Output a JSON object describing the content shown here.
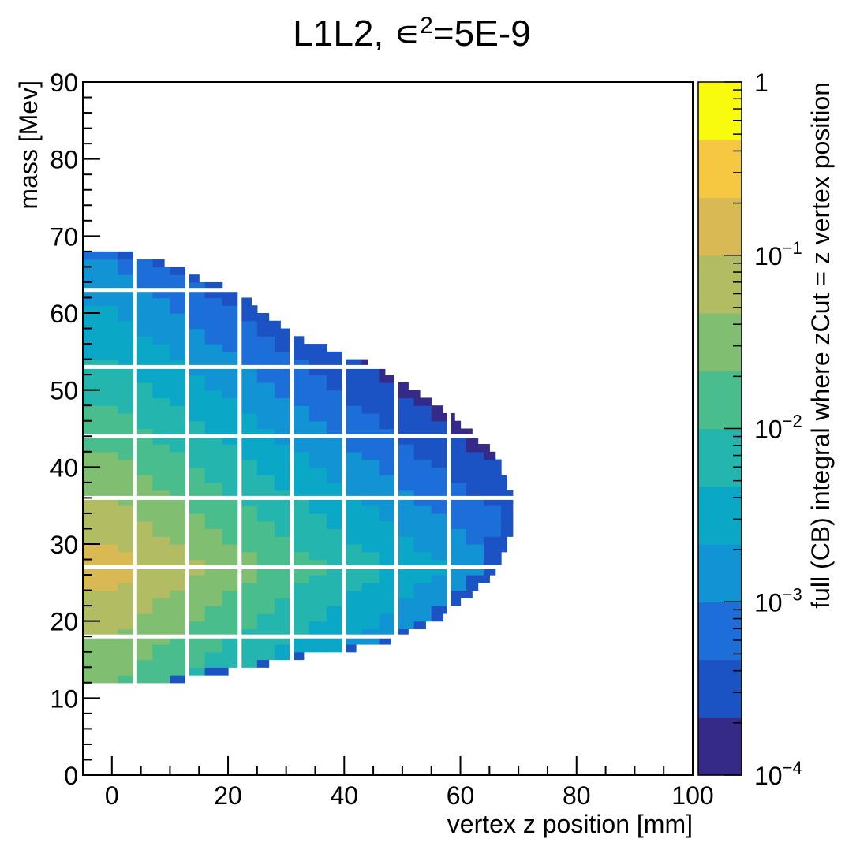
{
  "chart_data": {
    "type": "heatmap",
    "title": "L1L2, ∊²=5E-9",
    "title_parts": {
      "prefix": "L1L2, ",
      "epsilon": "∊",
      "power": "2",
      "suffix": "=5E-9"
    },
    "xlabel": "vertex z position [mm]",
    "ylabel": "mass [Mev]",
    "zlabel": "full (CB) integral where zCut = z vertex position",
    "xlim": [
      -5,
      100
    ],
    "ylim": [
      0,
      90
    ],
    "x_ticks": [
      "0",
      "20",
      "40",
      "60",
      "80",
      "100"
    ],
    "y_ticks": [
      "0",
      "10",
      "20",
      "30",
      "40",
      "50",
      "60",
      "70",
      "80",
      "90"
    ],
    "z_scale": "log",
    "zlim": [
      0.0001,
      1
    ],
    "z_ticks": [
      {
        "base": "1",
        "exp": ""
      },
      {
        "base": "10",
        "exp": "−1"
      },
      {
        "base": "10",
        "exp": "−2"
      },
      {
        "base": "10",
        "exp": "−3"
      },
      {
        "base": "10",
        "exp": "−4"
      }
    ],
    "cell_size": {
      "z_mm": 3,
      "mass_mev": 1
    },
    "mass_range": [
      12,
      68
    ],
    "z_start": -5,
    "z_edge_mm": [
      [
        12,
        13
      ],
      [
        13,
        20
      ],
      [
        14,
        27
      ],
      [
        15,
        33
      ],
      [
        16,
        42
      ],
      [
        17,
        48
      ],
      [
        18,
        51
      ],
      [
        19,
        54
      ],
      [
        20,
        57
      ],
      [
        21,
        58
      ],
      [
        22,
        60
      ],
      [
        23,
        62
      ],
      [
        24,
        63
      ],
      [
        25,
        65
      ],
      [
        26,
        66
      ],
      [
        27,
        67
      ],
      [
        28,
        67
      ],
      [
        29,
        68
      ],
      [
        30,
        68
      ],
      [
        31,
        69
      ],
      [
        32,
        69
      ],
      [
        33,
        69
      ],
      [
        34,
        69
      ],
      [
        35,
        69
      ],
      [
        36,
        69
      ],
      [
        37,
        68
      ],
      [
        38,
        68
      ],
      [
        39,
        67
      ],
      [
        40,
        67
      ],
      [
        41,
        66
      ],
      [
        42,
        65
      ],
      [
        43,
        63
      ],
      [
        44,
        62
      ],
      [
        45,
        60
      ],
      [
        46,
        59
      ],
      [
        47,
        57
      ],
      [
        48,
        55
      ],
      [
        49,
        53
      ],
      [
        50,
        51
      ],
      [
        51,
        49
      ],
      [
        52,
        47
      ],
      [
        53,
        44
      ],
      [
        54,
        40
      ],
      [
        55,
        37
      ],
      [
        56,
        33
      ],
      [
        57,
        31
      ],
      [
        58,
        29
      ],
      [
        59,
        27
      ],
      [
        60,
        25
      ],
      [
        61,
        24
      ],
      [
        62,
        22
      ],
      [
        63,
        19
      ],
      [
        64,
        15
      ],
      [
        65,
        13
      ],
      [
        66,
        9
      ],
      [
        67,
        4
      ],
      [
        68,
        0
      ]
    ],
    "peak": {
      "mass_mev": 27,
      "z_mm": 0,
      "value": 0.15
    },
    "grid": false,
    "colormap": [
      "#352a87",
      "#1c53c4",
      "#1c6fd8",
      "#1193d4",
      "#0aa8c6",
      "#24b6ae",
      "#4abd8d",
      "#80bf72",
      "#b2bc63",
      "#d9b954",
      "#f6c740",
      "#f9fb0e"
    ]
  }
}
